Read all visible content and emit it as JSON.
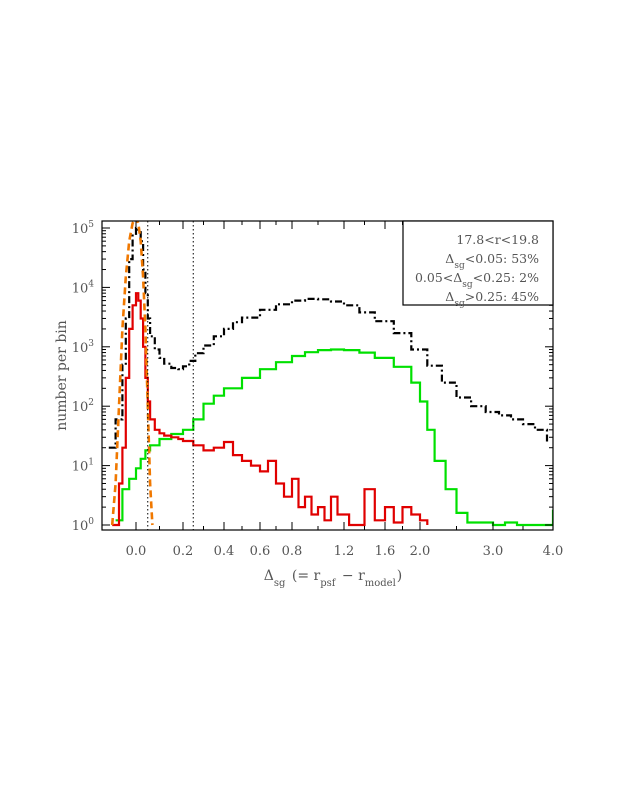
{
  "chart_data": {
    "type": "line",
    "x_scale": "asinh-like (nonlinear, as printed tick positions)",
    "y_scale": "log",
    "xlim": [
      -0.1,
      4.0
    ],
    "ylim": [
      1,
      200000
    ],
    "x_ticks": [
      0.0,
      0.2,
      0.4,
      0.6,
      0.8,
      1.2,
      1.6,
      2.0,
      3.0,
      4.0
    ],
    "x_tick_labels": [
      "0.0",
      "0.2",
      "0.4",
      "0.6",
      "0.8",
      "1.2",
      "1.6",
      "2.0",
      "3.0",
      "4.0"
    ],
    "y_ticks": [
      1,
      10,
      100,
      1000,
      10000,
      100000
    ],
    "y_tick_labels": [
      {
        "base": "10",
        "exp": "0"
      },
      {
        "base": "10",
        "exp": "1"
      },
      {
        "base": "10",
        "exp": "2"
      },
      {
        "base": "10",
        "exp": "3"
      },
      {
        "base": "10",
        "exp": "4"
      },
      {
        "base": "10",
        "exp": "5"
      }
    ],
    "xlabel": {
      "main": "Δ",
      "sub": "sg",
      "mid": " (= r",
      "sub2": "psf",
      "mid2": " − r",
      "sub3": "model",
      "end": ")"
    },
    "ylabel": "number per bin",
    "reference_lines_x": [
      0.05,
      0.25
    ],
    "legend_box": {
      "placement": "top-right",
      "lines": [
        {
          "pre": "17.8<r<19.8",
          "sub": "",
          "post": ""
        },
        {
          "pre": "Δ",
          "sub": "sg",
          "post": "<0.05:  53%"
        },
        {
          "pre": "0.05<Δ",
          "sub": "sg",
          "post": "<0.25:    2%"
        },
        {
          "pre": "Δ",
          "sub": "sg",
          "post": ">0.25:  45%"
        }
      ]
    },
    "series": [
      {
        "style": "black dash-dot histogram",
        "color": "#000000",
        "points": [
          [
            -0.08,
            20
          ],
          [
            -0.06,
            60
          ],
          [
            -0.04,
            500
          ],
          [
            -0.03,
            3000
          ],
          [
            -0.02,
            30000
          ],
          [
            -0.01,
            80000
          ],
          [
            0.0,
            100000
          ],
          [
            0.01,
            85000
          ],
          [
            0.02,
            60000
          ],
          [
            0.03,
            20000
          ],
          [
            0.04,
            8000
          ],
          [
            0.05,
            3000
          ],
          [
            0.06,
            1500
          ],
          [
            0.08,
            900
          ],
          [
            0.1,
            650
          ],
          [
            0.12,
            520
          ],
          [
            0.15,
            440
          ],
          [
            0.18,
            420
          ],
          [
            0.2,
            470
          ],
          [
            0.23,
            580
          ],
          [
            0.26,
            780
          ],
          [
            0.3,
            1050
          ],
          [
            0.35,
            1500
          ],
          [
            0.4,
            2000
          ],
          [
            0.45,
            2600
          ],
          [
            0.5,
            3100
          ],
          [
            0.6,
            4200
          ],
          [
            0.7,
            5200
          ],
          [
            0.8,
            6000
          ],
          [
            0.9,
            6400
          ],
          [
            1.0,
            6300
          ],
          [
            1.1,
            5800
          ],
          [
            1.2,
            5000
          ],
          [
            1.35,
            3800
          ],
          [
            1.5,
            2700
          ],
          [
            1.7,
            1700
          ],
          [
            1.9,
            900
          ],
          [
            2.1,
            480
          ],
          [
            2.3,
            250
          ],
          [
            2.5,
            140
          ],
          [
            2.7,
            100
          ],
          [
            2.9,
            80
          ],
          [
            3.1,
            70
          ],
          [
            3.3,
            60
          ],
          [
            3.5,
            50
          ],
          [
            3.7,
            40
          ],
          [
            3.9,
            25
          ]
        ]
      },
      {
        "style": "green solid histogram",
        "color": "#00e000",
        "points": [
          [
            -0.06,
            1.2
          ],
          [
            -0.04,
            4
          ],
          [
            -0.02,
            6
          ],
          [
            0.0,
            9
          ],
          [
            0.02,
            13
          ],
          [
            0.04,
            18
          ],
          [
            0.06,
            22
          ],
          [
            0.1,
            28
          ],
          [
            0.15,
            34
          ],
          [
            0.2,
            40
          ],
          [
            0.25,
            60
          ],
          [
            0.3,
            110
          ],
          [
            0.35,
            150
          ],
          [
            0.4,
            200
          ],
          [
            0.5,
            300
          ],
          [
            0.6,
            420
          ],
          [
            0.7,
            550
          ],
          [
            0.8,
            700
          ],
          [
            0.9,
            810
          ],
          [
            1.0,
            880
          ],
          [
            1.1,
            900
          ],
          [
            1.2,
            880
          ],
          [
            1.35,
            800
          ],
          [
            1.5,
            650
          ],
          [
            1.7,
            460
          ],
          [
            1.9,
            250
          ],
          [
            2.0,
            120
          ],
          [
            2.1,
            40
          ],
          [
            2.2,
            12
          ],
          [
            2.35,
            4
          ],
          [
            2.5,
            1.6
          ],
          [
            2.65,
            1.1
          ],
          [
            3.0,
            1.0
          ],
          [
            3.2,
            1.1
          ],
          [
            3.4,
            1.0
          ],
          [
            4.0,
            1.8
          ]
        ]
      },
      {
        "style": "red solid histogram",
        "color": "#e00000",
        "points": [
          [
            -0.07,
            1.0
          ],
          [
            -0.05,
            5
          ],
          [
            -0.04,
            20
          ],
          [
            -0.03,
            300
          ],
          [
            -0.02,
            2000
          ],
          [
            -0.01,
            5000
          ],
          [
            0.0,
            8000
          ],
          [
            0.01,
            6000
          ],
          [
            0.02,
            3000
          ],
          [
            0.03,
            1000
          ],
          [
            0.04,
            300
          ],
          [
            0.05,
            120
          ],
          [
            0.06,
            60
          ],
          [
            0.08,
            40
          ],
          [
            0.1,
            35
          ],
          [
            0.12,
            32
          ],
          [
            0.15,
            30
          ],
          [
            0.18,
            28
          ],
          [
            0.2,
            26
          ],
          [
            0.25,
            22
          ],
          [
            0.3,
            18
          ],
          [
            0.35,
            20
          ],
          [
            0.4,
            25
          ],
          [
            0.45,
            15
          ],
          [
            0.5,
            12
          ],
          [
            0.55,
            10
          ],
          [
            0.6,
            8
          ],
          [
            0.65,
            12
          ],
          [
            0.7,
            5
          ],
          [
            0.75,
            3
          ],
          [
            0.8,
            6
          ],
          [
            0.85,
            2
          ],
          [
            0.9,
            3
          ],
          [
            0.95,
            1.5
          ],
          [
            1.0,
            2
          ],
          [
            1.05,
            1.2
          ],
          [
            1.1,
            3
          ],
          [
            1.15,
            1.5
          ],
          [
            1.25,
            1.0
          ],
          [
            1.4,
            4
          ],
          [
            1.5,
            1.2
          ],
          [
            1.6,
            2
          ],
          [
            1.7,
            1.1
          ],
          [
            1.8,
            2
          ],
          [
            1.9,
            1.5
          ],
          [
            2.0,
            1.2
          ],
          [
            2.1,
            1.0
          ]
        ]
      },
      {
        "style": "orange dashed gaussian fit",
        "color": "#f07800",
        "points": [
          [
            -0.07,
            1.0
          ],
          [
            -0.06,
            5
          ],
          [
            -0.05,
            100
          ],
          [
            -0.04,
            2000
          ],
          [
            -0.03,
            15000
          ],
          [
            -0.02,
            60000
          ],
          [
            -0.01,
            120000
          ],
          [
            0.0,
            150000
          ],
          [
            0.01,
            120000
          ],
          [
            0.02,
            60000
          ],
          [
            0.03,
            15000
          ],
          [
            0.04,
            2000
          ],
          [
            0.05,
            100
          ],
          [
            0.06,
            5
          ],
          [
            0.07,
            1.0
          ]
        ]
      }
    ]
  }
}
